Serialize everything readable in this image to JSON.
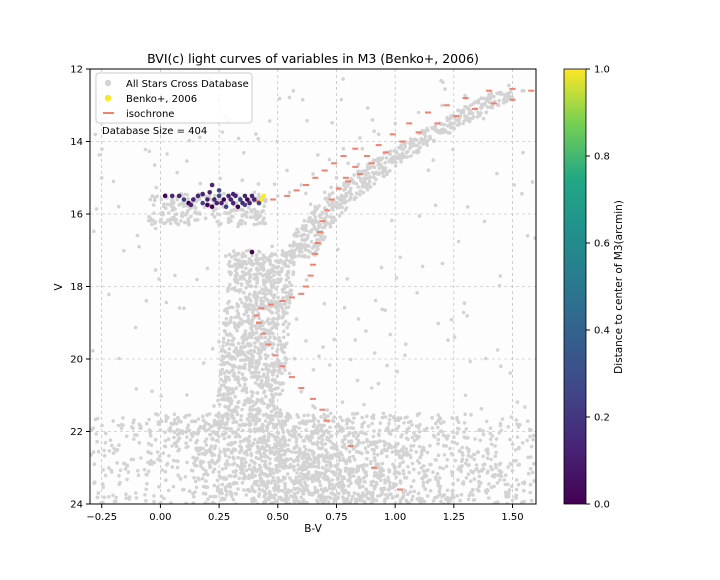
{
  "chart_data": {
    "type": "scatter",
    "title": "BVI(c) light curves of variables in M3 (Benko+, 2006)",
    "xlabel": "B-V",
    "ylabel": "V",
    "xlim": [
      -0.3,
      1.6
    ],
    "ylim": [
      24,
      12
    ],
    "y_inverted": true,
    "grid": true,
    "legend_position": "upper-left",
    "x_ticks": [
      "−0.25",
      "0.00",
      "0.25",
      "0.50",
      "0.75",
      "1.00",
      "1.25",
      "1.50"
    ],
    "x_tick_values": [
      -0.25,
      0.0,
      0.25,
      0.5,
      0.75,
      1.0,
      1.25,
      1.5
    ],
    "y_ticks": [
      "12",
      "14",
      "16",
      "18",
      "20",
      "22",
      "24"
    ],
    "y_tick_values": [
      12,
      14,
      16,
      18,
      20,
      22,
      24
    ],
    "annotation": "Database Size = 404",
    "colorbar": {
      "label": "Distance to center of M3(arcmin)",
      "range": [
        0.0,
        1.0
      ],
      "ticks": [
        "0.0",
        "0.2",
        "0.4",
        "0.6",
        "0.8",
        "1.0"
      ],
      "tick_values": [
        0.0,
        0.2,
        0.4,
        0.6,
        0.8,
        1.0
      ],
      "colormap": "viridis"
    },
    "series": [
      {
        "name": "All Stars Cross Database",
        "kind": "points",
        "color": "#d3d3d3",
        "description_regions": [
          {
            "region": "main sequence",
            "x": [
              0.25,
              1.6
            ],
            "y": [
              21.5,
              24
            ]
          },
          {
            "region": "subgiant/turnoff",
            "x": [
              0.3,
              0.6
            ],
            "y": [
              17,
              21.5
            ]
          },
          {
            "region": "red giant branch",
            "x": [
              0.55,
              1.55
            ],
            "y": [
              12.5,
              17
            ]
          },
          {
            "region": "horizontal branch",
            "x": [
              -0.05,
              0.45
            ],
            "y": [
              15.3,
              16.5
            ]
          }
        ],
        "points": [
          [
            -0.2,
            22.6
          ],
          [
            -0.15,
            22.9
          ],
          [
            -0.28,
            23.4
          ],
          [
            -0.1,
            22.1
          ],
          [
            -0.22,
            23.8
          ],
          [
            -0.05,
            23.1
          ],
          [
            0.05,
            22.4
          ],
          [
            0.1,
            23.6
          ],
          [
            0.15,
            22.8
          ],
          [
            0.18,
            23.3
          ],
          [
            0.22,
            22.2
          ],
          [
            0.3,
            23.7
          ],
          [
            0.35,
            22.9
          ],
          [
            0.42,
            23.5
          ],
          [
            0.5,
            22.7
          ],
          [
            0.58,
            23.9
          ],
          [
            0.62,
            22.5
          ],
          [
            0.7,
            23.2
          ],
          [
            0.78,
            22.8
          ],
          [
            0.85,
            23.4
          ],
          [
            0.92,
            23.9
          ],
          [
            1.0,
            23.1
          ],
          [
            1.05,
            22.6
          ],
          [
            1.12,
            23.5
          ],
          [
            1.2,
            23.8
          ],
          [
            1.28,
            23.0
          ],
          [
            1.35,
            23.6
          ],
          [
            1.42,
            23.2
          ],
          [
            1.5,
            23.9
          ],
          [
            1.55,
            23.4
          ],
          [
            0.28,
            21.8
          ],
          [
            0.33,
            21.2
          ],
          [
            0.36,
            20.7
          ],
          [
            0.38,
            20.2
          ],
          [
            0.4,
            19.8
          ],
          [
            0.42,
            19.4
          ],
          [
            0.44,
            19.0
          ],
          [
            0.45,
            18.6
          ],
          [
            0.47,
            18.2
          ],
          [
            0.5,
            17.8
          ],
          [
            0.53,
            17.4
          ],
          [
            0.56,
            17.0
          ],
          [
            0.6,
            16.6
          ],
          [
            0.63,
            16.2
          ],
          [
            0.66,
            15.8
          ],
          [
            0.7,
            15.4
          ],
          [
            0.75,
            15.0
          ],
          [
            0.8,
            14.6
          ],
          [
            0.86,
            14.2
          ],
          [
            0.93,
            13.8
          ],
          [
            1.0,
            13.5
          ],
          [
            1.1,
            13.2
          ],
          [
            1.2,
            13.0
          ],
          [
            1.3,
            12.8
          ],
          [
            1.4,
            12.7
          ],
          [
            0.55,
            20.4
          ],
          [
            0.6,
            20.9
          ],
          [
            0.65,
            21.3
          ],
          [
            0.7,
            21.7
          ],
          [
            0.8,
            22.1
          ],
          [
            0.0,
            16.2
          ],
          [
            0.05,
            15.9
          ],
          [
            0.1,
            15.7
          ],
          [
            -0.02,
            16.4
          ],
          [
            0.15,
            15.6
          ],
          [
            0.45,
            15.6
          ],
          [
            0.5,
            15.5
          ],
          [
            0.55,
            15.4
          ],
          [
            0.6,
            15.2
          ],
          [
            0.65,
            14.9
          ],
          [
            0.72,
            14.5
          ],
          [
            0.78,
            14.2
          ],
          [
            0.85,
            13.9
          ],
          [
            0.38,
            17.0
          ],
          [
            0.35,
            17.6
          ],
          [
            0.58,
            18.9
          ],
          [
            0.62,
            19.5
          ],
          [
            0.32,
            20.5
          ],
          [
            0.3,
            19.6
          ],
          [
            0.25,
            20.9
          ],
          [
            -0.25,
            15.0
          ],
          [
            -0.2,
            15.1
          ],
          [
            0.2,
            17.5
          ],
          [
            0.1,
            18.6
          ],
          [
            1.45,
            20.2
          ],
          [
            1.3,
            21.0
          ],
          [
            1.1,
            21.9
          ],
          [
            0.95,
            21.5
          ],
          [
            1.2,
            22.0
          ],
          [
            0.9,
            20.8
          ]
        ]
      },
      {
        "name": "Benko+, 2006",
        "kind": "points",
        "color": "#fde725",
        "colorscale": "viridis",
        "points": [
          [
            0.02,
            15.5,
            0.05
          ],
          [
            0.05,
            15.5,
            0.08
          ],
          [
            0.08,
            15.5,
            0.12
          ],
          [
            0.1,
            15.6,
            0.2
          ],
          [
            0.12,
            15.7,
            0.06
          ],
          [
            0.14,
            15.6,
            0.1
          ],
          [
            0.16,
            15.5,
            0.15
          ],
          [
            0.18,
            15.7,
            0.25
          ],
          [
            0.2,
            15.6,
            0.1
          ],
          [
            0.21,
            15.4,
            0.18
          ],
          [
            0.22,
            15.8,
            0.05
          ],
          [
            0.23,
            15.6,
            0.14
          ],
          [
            0.24,
            15.7,
            0.08
          ],
          [
            0.25,
            15.5,
            0.22
          ],
          [
            0.26,
            15.7,
            0.11
          ],
          [
            0.27,
            15.6,
            0.04
          ],
          [
            0.28,
            15.8,
            0.19
          ],
          [
            0.29,
            15.5,
            0.07
          ],
          [
            0.3,
            15.6,
            0.13
          ],
          [
            0.31,
            15.7,
            0.09
          ],
          [
            0.32,
            15.5,
            0.16
          ],
          [
            0.33,
            15.8,
            0.06
          ],
          [
            0.34,
            15.6,
            0.21
          ],
          [
            0.35,
            15.7,
            0.1
          ],
          [
            0.36,
            15.5,
            0.14
          ],
          [
            0.37,
            15.6,
            0.03
          ],
          [
            0.38,
            15.7,
            0.17
          ],
          [
            0.39,
            15.5,
            0.08
          ],
          [
            0.4,
            15.6,
            0.12
          ],
          [
            0.42,
            15.7,
            0.3
          ],
          [
            0.43,
            15.6,
            0.98
          ],
          [
            0.44,
            15.5,
            0.95
          ],
          [
            0.22,
            15.2,
            0.12
          ],
          [
            0.25,
            15.35,
            0.2
          ],
          [
            0.18,
            15.45,
            0.1
          ],
          [
            0.39,
            17.05,
            0.05
          ],
          [
            0.13,
            15.75,
            0.15
          ],
          [
            0.31,
            15.45,
            0.18
          ],
          [
            0.36,
            15.75,
            0.25
          ],
          [
            0.2,
            15.75,
            0.06
          ]
        ]
      },
      {
        "name": "isochrone",
        "kind": "dashes",
        "color": "#f08070",
        "points": [
          [
            1.02,
            23.6
          ],
          [
            0.91,
            23.0
          ],
          [
            0.81,
            22.4
          ],
          [
            0.71,
            21.7
          ],
          [
            0.69,
            21.4
          ],
          [
            0.65,
            21.1
          ],
          [
            0.6,
            20.8
          ],
          [
            0.56,
            20.5
          ],
          [
            0.52,
            20.2
          ],
          [
            0.49,
            19.9
          ],
          [
            0.46,
            19.6
          ],
          [
            0.44,
            19.3
          ],
          [
            0.42,
            19.0
          ],
          [
            0.41,
            18.8
          ],
          [
            0.43,
            18.6
          ],
          [
            0.47,
            18.5
          ],
          [
            0.52,
            18.4
          ],
          [
            0.56,
            18.3
          ],
          [
            0.6,
            18.2
          ],
          [
            0.62,
            18.0
          ],
          [
            0.64,
            17.7
          ],
          [
            0.65,
            17.4
          ],
          [
            0.66,
            17.1
          ],
          [
            0.67,
            16.8
          ],
          [
            0.68,
            16.5
          ],
          [
            0.69,
            16.2
          ],
          [
            0.71,
            15.9
          ],
          [
            0.73,
            15.6
          ],
          [
            0.76,
            15.3
          ],
          [
            0.79,
            15.0
          ],
          [
            0.83,
            14.7
          ],
          [
            0.88,
            14.4
          ],
          [
            0.93,
            14.1
          ],
          [
            0.99,
            13.8
          ],
          [
            1.06,
            13.5
          ],
          [
            1.14,
            13.2
          ],
          [
            1.22,
            13.0
          ],
          [
            1.3,
            12.8
          ],
          [
            1.4,
            12.6
          ],
          [
            1.5,
            12.55
          ],
          [
            1.58,
            12.6
          ],
          [
            0.8,
            15.1
          ],
          [
            0.85,
            14.9
          ],
          [
            0.9,
            14.6
          ],
          [
            0.96,
            14.3
          ],
          [
            1.03,
            14.0
          ],
          [
            1.1,
            13.75
          ],
          [
            1.18,
            13.5
          ],
          [
            1.26,
            13.3
          ],
          [
            1.34,
            13.1
          ],
          [
            1.42,
            12.95
          ],
          [
            1.5,
            12.85
          ],
          [
            0.42,
            15.65
          ],
          [
            0.48,
            15.6
          ],
          [
            0.54,
            15.5
          ],
          [
            0.58,
            15.35
          ],
          [
            0.62,
            15.2
          ],
          [
            0.66,
            15.0
          ],
          [
            0.7,
            14.8
          ],
          [
            0.74,
            14.6
          ],
          [
            0.78,
            14.4
          ],
          [
            0.83,
            14.2
          ]
        ]
      }
    ]
  }
}
